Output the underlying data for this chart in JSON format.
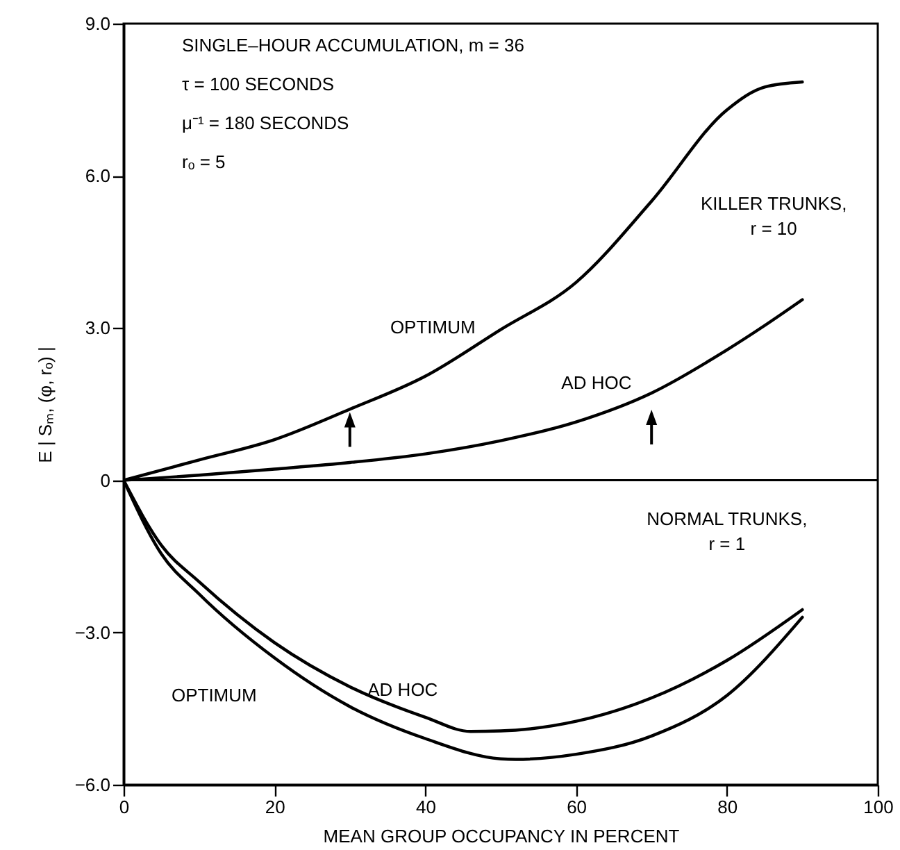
{
  "chart_data": {
    "type": "line",
    "xlabel": "MEAN GROUP OCCUPANCY IN PERCENT",
    "ylabel": "E | Sₘ, (φ, rₒ) |",
    "x": [
      0,
      10,
      20,
      30,
      40,
      50,
      60,
      70,
      80,
      85,
      90
    ],
    "series": [
      {
        "color": "#000000",
        "values": [
          0,
          0.4,
          0.8,
          1.4,
          2.05,
          2.97,
          3.9,
          5.5,
          7.3,
          7.75,
          7.85
        ]
      },
      {
        "color": "#000000",
        "values": [
          0,
          0.1,
          0.22,
          0.35,
          0.52,
          0.78,
          1.15,
          1.72,
          2.57,
          3.05,
          3.56
        ]
      },
      {
        "color": "#000000",
        "x": [
          0,
          5,
          10,
          20,
          30,
          40,
          46,
          50,
          60,
          70,
          80,
          90
        ],
        "values": [
          0,
          -1.28,
          -2.0,
          -3.2,
          -4.07,
          -4.67,
          -4.95,
          -4.94,
          -4.75,
          -4.29,
          -3.55,
          -2.55
        ]
      },
      {
        "color": "#000000",
        "x": [
          0,
          5,
          10,
          20,
          30,
          40,
          50,
          52,
          60,
          70,
          80,
          90
        ],
        "values": [
          0,
          -1.45,
          -2.24,
          -3.5,
          -4.46,
          -5.09,
          -5.49,
          -5.5,
          -5.4,
          -5.04,
          -4.24,
          -2.7
        ]
      }
    ],
    "xlim": [
      0,
      100
    ],
    "xticks": [
      0,
      20,
      40,
      60,
      80,
      100
    ],
    "ylim": [
      -6,
      9
    ],
    "yticks": [
      {
        "value": 9,
        "label": "9.0"
      },
      {
        "value": 6,
        "label": "6.0"
      },
      {
        "value": 3,
        "label": "3.0"
      },
      0,
      {
        "value": -3,
        "label": "−3.0"
      },
      {
        "value": -6,
        "label": "−6.0"
      }
    ],
    "ref_lines": [
      {
        "axis": "y",
        "value": 0
      }
    ],
    "annotations": [
      "SINGLE–HOUR ACCUMULATION, m = 36",
      "τ = 100 SECONDS",
      "μ⁻¹ = 180 SECONDS",
      "rₒ = 5",
      "OPTIMUM",
      "AD HOC",
      "KILLER TRUNKS,\nr = 10",
      "NORMAL TRUNKS,\nr = 1",
      "OPTIMUM",
      "AD HOC"
    ],
    "grid": false,
    "line_style": "solid",
    "marker": "none"
  }
}
